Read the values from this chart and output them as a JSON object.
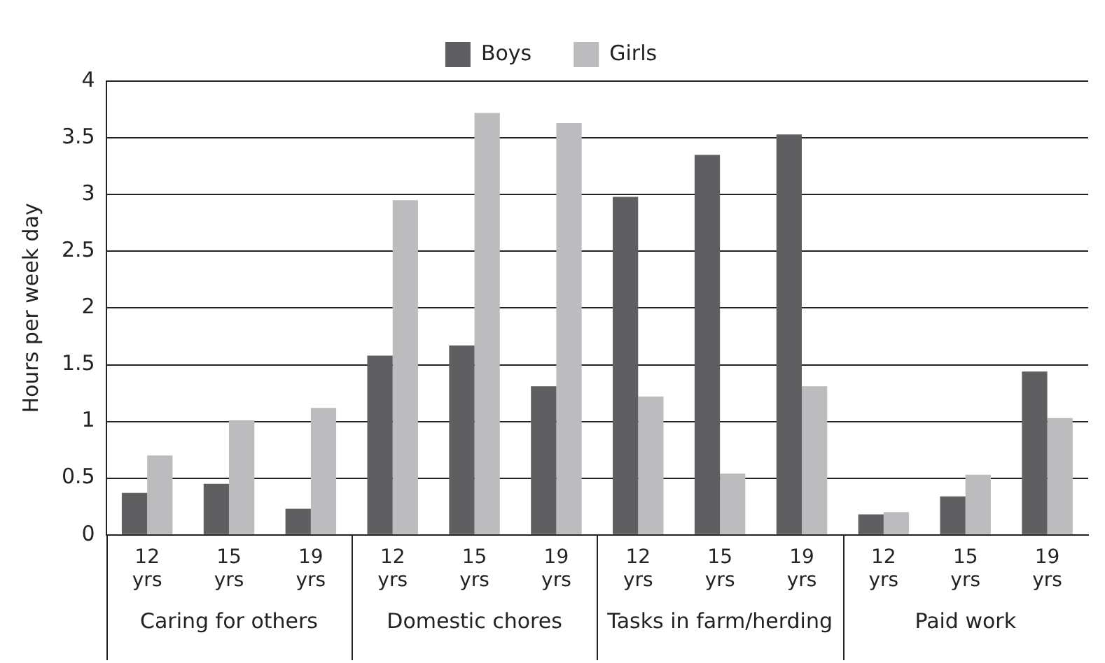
{
  "chart_data": {
    "type": "bar",
    "ylabel": "Hours per week day",
    "categories": [
      "12 yrs",
      "15 yrs",
      "19 yrs",
      "12 yrs",
      "15 yrs",
      "19 yrs",
      "12 yrs",
      "15 yrs",
      "19 yrs",
      "12 yrs",
      "15 yrs",
      "19 yrs"
    ],
    "series": [
      {
        "name": "Boys",
        "color": "#5f5f62",
        "values": [
          0.37,
          0.45,
          0.23,
          1.58,
          1.67,
          1.31,
          2.98,
          3.35,
          3.53,
          0.18,
          0.34,
          1.44
        ]
      },
      {
        "name": "Girls",
        "color": "#bcbcbe",
        "values": [
          0.7,
          1.01,
          1.12,
          2.95,
          3.72,
          3.63,
          1.22,
          0.54,
          1.31,
          0.2,
          0.53,
          1.03
        ]
      }
    ],
    "annotations": [
      "Caring for others",
      "Domestic chores",
      "Tasks in farm/herding",
      "Paid work"
    ],
    "ylim": [
      0,
      4
    ],
    "yticks": [
      0,
      0.5,
      1,
      1.5,
      2,
      2.5,
      3,
      3.5,
      4
    ],
    "grid": "y",
    "legend": "top"
  }
}
